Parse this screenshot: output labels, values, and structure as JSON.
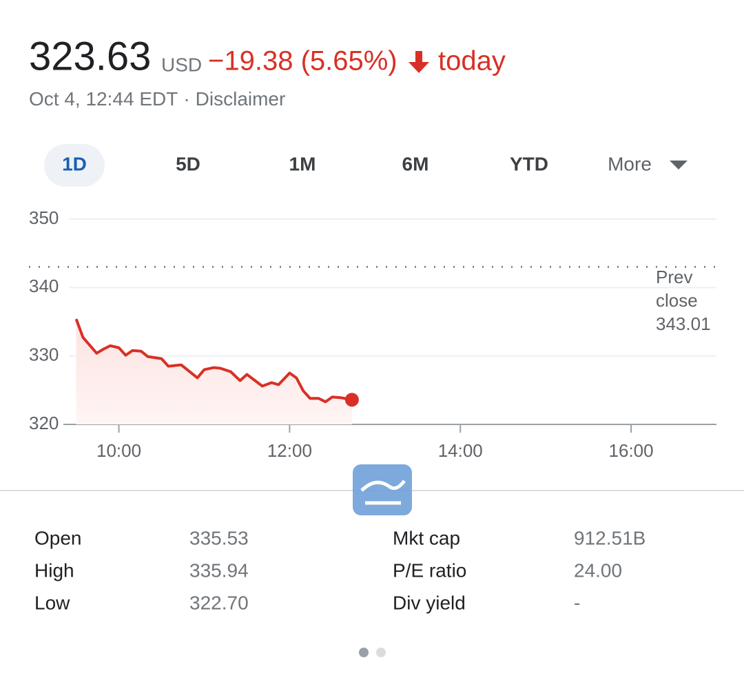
{
  "header": {
    "price": "323.63",
    "currency": "USD",
    "change": "−19.38 (5.65%)",
    "period": "today",
    "timestamp": "Oct 4, 12:44 EDT",
    "separator": "·",
    "disclaimer": "Disclaimer"
  },
  "tabs": [
    "1D",
    "5D",
    "1M",
    "6M",
    "YTD",
    "More"
  ],
  "chart_data": {
    "type": "line",
    "color": "#d93025",
    "x": [
      9.5,
      9.58,
      9.74,
      9.82,
      9.9,
      10.0,
      10.08,
      10.16,
      10.26,
      10.34,
      10.5,
      10.58,
      10.73,
      10.92,
      11.0,
      11.11,
      11.19,
      11.31,
      11.42,
      11.5,
      11.68,
      11.79,
      11.87,
      12.0,
      12.08,
      12.16,
      12.24,
      12.34,
      12.42,
      12.5,
      12.6,
      12.73
    ],
    "values": [
      335.4,
      332.7,
      330.4,
      331.0,
      331.5,
      331.2,
      330.1,
      330.8,
      330.7,
      329.9,
      329.6,
      328.5,
      328.7,
      326.8,
      328.0,
      328.3,
      328.2,
      327.7,
      326.4,
      327.3,
      325.6,
      326.1,
      325.8,
      327.5,
      326.8,
      324.9,
      323.8,
      323.8,
      323.3,
      324.0,
      323.9,
      323.6
    ],
    "xlim": [
      9.35,
      17
    ],
    "xticks": [
      {
        "value": 10,
        "label": "10:00"
      },
      {
        "value": 12,
        "label": "12:00"
      },
      {
        "value": 14,
        "label": "14:00"
      },
      {
        "value": 16,
        "label": "16:00"
      }
    ],
    "ylim": [
      320,
      350
    ],
    "yticks": [
      320,
      330,
      340,
      350
    ],
    "grid": true,
    "prev_close": {
      "label": [
        "Prev",
        "close"
      ],
      "value": 343.01
    }
  },
  "stats": {
    "left": [
      [
        "Open",
        "335.53"
      ],
      [
        "High",
        "335.94"
      ],
      [
        "Low",
        "322.70"
      ]
    ],
    "right": [
      [
        "Mkt cap",
        "912.51B"
      ],
      [
        "P/E ratio",
        "24.00"
      ],
      [
        "Div yield",
        "-"
      ]
    ]
  }
}
